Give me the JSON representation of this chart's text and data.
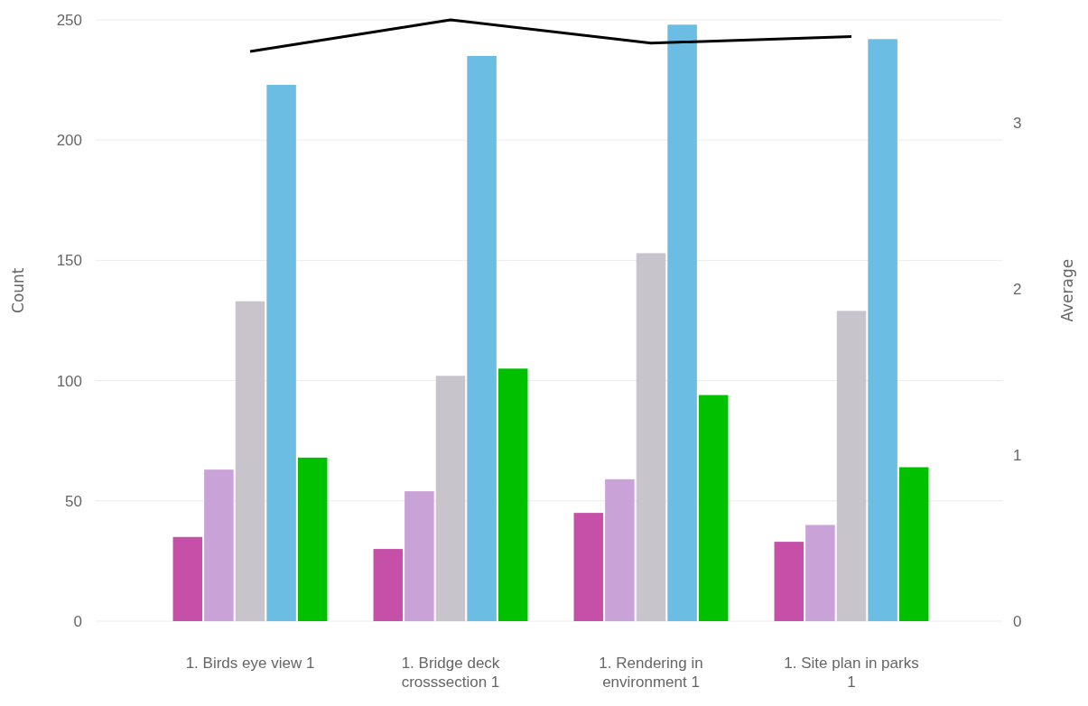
{
  "chart_data": {
    "type": "bar",
    "ylabel": "Count",
    "y2label": "Average",
    "categories": [
      "1. Birds eye view 1",
      "1. Bridge deck crosssection 1",
      "1. Rendering in environment 1",
      "1. Site plan in parks 1"
    ],
    "series": [
      {
        "color": "#c64fa8",
        "values": [
          35,
          30,
          45,
          33
        ]
      },
      {
        "color": "#c9a2d8",
        "values": [
          63,
          54,
          59,
          40
        ]
      },
      {
        "color": "#c8c4cc",
        "values": [
          133,
          102,
          153,
          129
        ]
      },
      {
        "color": "#6cbde3",
        "values": [
          223,
          235,
          248,
          242
        ]
      },
      {
        "color": "#00c000",
        "values": [
          68,
          105,
          94,
          64
        ]
      },
      {
        "type": "line",
        "axis": "y2",
        "color": "#000000",
        "values": [
          3.43,
          3.62,
          3.48,
          3.52
        ]
      }
    ],
    "ylim": [
      0,
      250
    ],
    "yticks": [
      0,
      50,
      100,
      150,
      200,
      250
    ],
    "y2lim": [
      0,
      3.62
    ],
    "y2ticks": [
      0,
      1,
      2,
      3
    ],
    "grid": "y",
    "marker": "none",
    "line_style": "solid"
  }
}
